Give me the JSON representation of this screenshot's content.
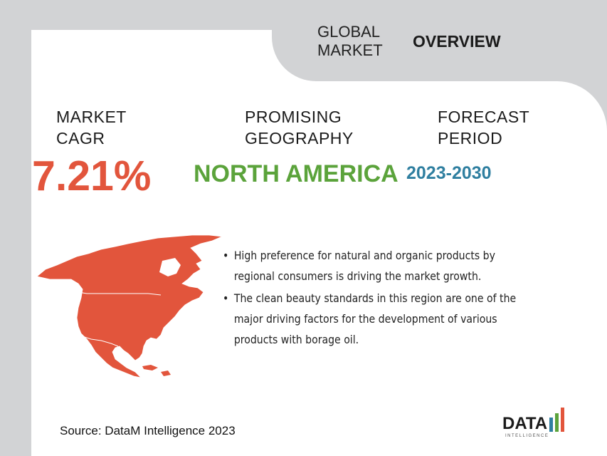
{
  "header": {
    "left_line1": "GLOBAL",
    "left_line2": "MARKET",
    "right": "OVERVIEW"
  },
  "stats": {
    "cagr": {
      "label_line1": "MARKET",
      "label_line2": "CAGR",
      "value": "7.21%"
    },
    "geography": {
      "label_line1": "PROMISING",
      "label_line2": "GEOGRAPHY",
      "value": "NORTH AMERICA"
    },
    "period": {
      "label_line1": "FORECAST",
      "label_line2": "PERIOD",
      "value": "2023-2030"
    }
  },
  "map": {
    "icon": "north-america-map",
    "color": "#e2553c"
  },
  "bullets": [
    "High preference for natural and organic products by regional consumers is driving the market growth.",
    " The clean beauty standards in this region are one of the major driving factors for the development of various products with borage oil."
  ],
  "source": "Source: DataM Intelligence 2023",
  "logo": {
    "main": "DATA",
    "sub": "INTELLIGENCE"
  },
  "colors": {
    "accent_red": "#e2553c",
    "green": "#5ba33b",
    "blue": "#2f7fa0",
    "gray": "#d2d3d5"
  }
}
